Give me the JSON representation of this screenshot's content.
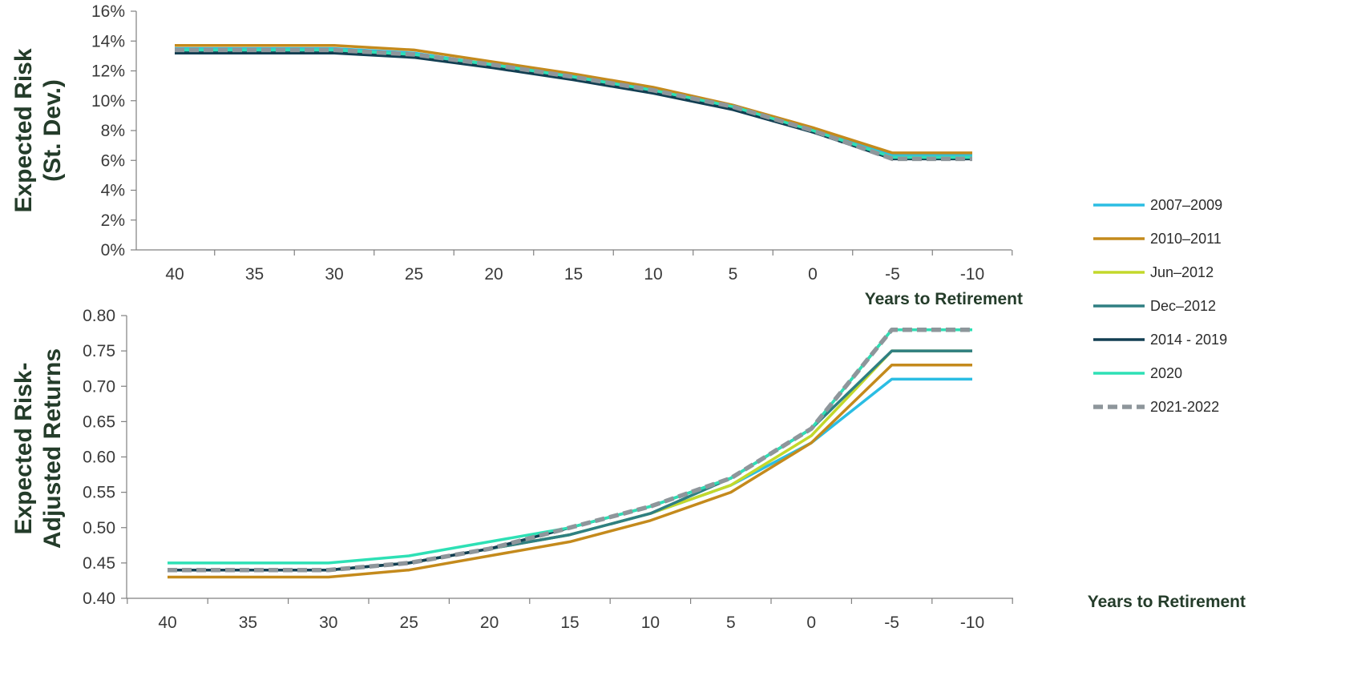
{
  "chart_data": [
    {
      "type": "line",
      "ylabel_lines": [
        "Expected Risk",
        "(St. Dev.)"
      ],
      "xlabel": "Years to Retirement",
      "x": [
        40,
        35,
        30,
        25,
        20,
        15,
        10,
        5,
        0,
        -5,
        -10
      ],
      "x_tick_labels": [
        "40",
        "35",
        "30",
        "25",
        "20",
        "15",
        "10",
        "5",
        "0",
        "-5",
        "-10"
      ],
      "y_tick_labels": [
        "0%",
        "2%",
        "4%",
        "6%",
        "8%",
        "10%",
        "12%",
        "14%",
        "16%"
      ],
      "ylim": [
        0,
        16
      ],
      "y_unit": "%",
      "series": [
        {
          "name": "2007–2009",
          "values": [
            13.5,
            13.5,
            13.5,
            13.2,
            12.4,
            11.7,
            10.8,
            9.7,
            8.1,
            6.4,
            6.4
          ]
        },
        {
          "name": "2010–2011",
          "values": [
            13.7,
            13.7,
            13.7,
            13.4,
            12.6,
            11.8,
            10.9,
            9.7,
            8.2,
            6.5,
            6.5
          ]
        },
        {
          "name": "Jun–2012",
          "values": [
            13.4,
            13.4,
            13.4,
            13.1,
            12.4,
            11.5,
            10.7,
            9.6,
            8.0,
            6.2,
            6.2
          ]
        },
        {
          "name": "Dec–2012",
          "values": [
            13.3,
            13.3,
            13.3,
            13.0,
            12.3,
            11.5,
            10.6,
            9.5,
            7.9,
            6.2,
            6.2
          ]
        },
        {
          "name": "2014 - 2019",
          "values": [
            13.2,
            13.2,
            13.2,
            12.9,
            12.2,
            11.4,
            10.5,
            9.4,
            7.9,
            6.1,
            6.1
          ]
        },
        {
          "name": "2020",
          "values": [
            13.4,
            13.4,
            13.4,
            13.1,
            12.4,
            11.6,
            10.7,
            9.6,
            8.0,
            6.2,
            6.2
          ]
        },
        {
          "name": "2021-2022",
          "values": [
            13.4,
            13.4,
            13.4,
            13.1,
            12.4,
            11.6,
            10.7,
            9.6,
            8.0,
            6.1,
            6.1
          ]
        }
      ]
    },
    {
      "type": "line",
      "ylabel_lines": [
        "Expected Risk-",
        "Adjusted Returns"
      ],
      "xlabel": "Years to Retirement",
      "x": [
        40,
        35,
        30,
        25,
        20,
        15,
        10,
        5,
        0,
        -5,
        -10
      ],
      "x_tick_labels": [
        "40",
        "35",
        "30",
        "25",
        "20",
        "15",
        "10",
        "5",
        "0",
        "-5",
        "-10"
      ],
      "y_tick_labels": [
        "0.40",
        "0.45",
        "0.50",
        "0.55",
        "0.60",
        "0.65",
        "0.70",
        "0.75",
        "0.80"
      ],
      "ylim": [
        0.4,
        0.8
      ],
      "series": [
        {
          "name": "2007–2009",
          "values": [
            0.44,
            0.44,
            0.44,
            0.45,
            0.47,
            0.49,
            0.52,
            0.56,
            0.62,
            0.71,
            0.71
          ]
        },
        {
          "name": "2010–2011",
          "values": [
            0.43,
            0.43,
            0.43,
            0.44,
            0.46,
            0.48,
            0.51,
            0.55,
            0.62,
            0.73,
            0.73
          ]
        },
        {
          "name": "Jun–2012",
          "values": [
            0.44,
            0.44,
            0.44,
            0.45,
            0.47,
            0.49,
            0.52,
            0.56,
            0.63,
            0.75,
            0.75
          ]
        },
        {
          "name": "Dec–2012",
          "values": [
            0.44,
            0.44,
            0.44,
            0.45,
            0.47,
            0.49,
            0.52,
            0.57,
            0.64,
            0.75,
            0.75
          ]
        },
        {
          "name": "2014 - 2019",
          "values": [
            0.44,
            0.44,
            0.44,
            0.45,
            0.47,
            0.5,
            0.53,
            0.57,
            0.64,
            0.78,
            0.78
          ]
        },
        {
          "name": "2020",
          "values": [
            0.45,
            0.45,
            0.45,
            0.46,
            0.48,
            0.5,
            0.53,
            0.57,
            0.64,
            0.78,
            0.78
          ]
        },
        {
          "name": "2021-2022",
          "values": [
            0.44,
            0.44,
            0.44,
            0.45,
            0.47,
            0.5,
            0.53,
            0.57,
            0.64,
            0.78,
            0.78
          ]
        }
      ]
    }
  ],
  "legend": {
    "position": "right",
    "items": [
      {
        "name": "2007–2009",
        "color": "#2bbde3",
        "dashed": false
      },
      {
        "name": "2010–2011",
        "color": "#c48a1c",
        "dashed": false
      },
      {
        "name": "Jun–2012",
        "color": "#c3d82b",
        "dashed": false
      },
      {
        "name": "Dec–2012",
        "color": "#2f7f82",
        "dashed": false
      },
      {
        "name": "2014 - 2019",
        "color": "#123e52",
        "dashed": false
      },
      {
        "name": "2020",
        "color": "#2ee0b5",
        "dashed": false
      },
      {
        "name": "2021-2022",
        "color": "#8e969b",
        "dashed": true
      }
    ]
  }
}
